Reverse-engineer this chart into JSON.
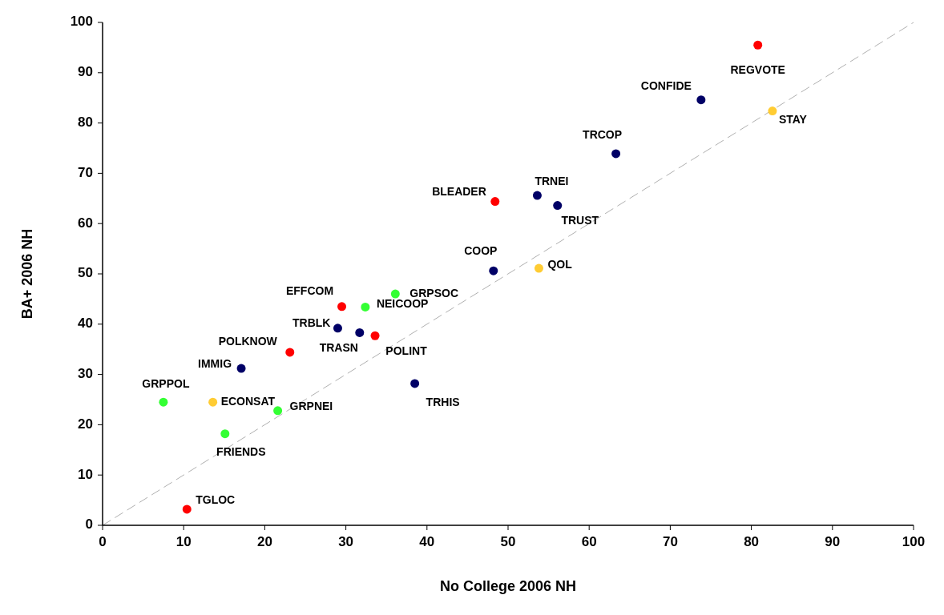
{
  "chart_data": {
    "type": "scatter",
    "xlabel": "No College 2006 NH",
    "ylabel": "BA+ 2006 NH",
    "xlim": [
      0,
      100
    ],
    "ylim": [
      0,
      100
    ],
    "xticks": [
      0,
      10,
      20,
      30,
      40,
      50,
      60,
      70,
      80,
      90,
      100
    ],
    "yticks": [
      0,
      10,
      20,
      30,
      40,
      50,
      60,
      70,
      80,
      90,
      100
    ],
    "grid": false,
    "marker": "circle",
    "series": [
      {
        "type": "line",
        "color": "#b0b0b0",
        "line_style": "dashed",
        "marker": "none",
        "x": [
          0,
          100
        ],
        "values": [
          0,
          100
        ]
      },
      {
        "x": [
          80.8,
          73.8,
          82.6,
          63.3,
          53.6,
          56.1,
          48.4,
          48.2,
          53.8,
          36.1,
          29.5,
          32.4,
          29.0,
          31.7,
          33.6,
          23.1,
          17.1,
          38.5,
          7.5,
          13.6,
          21.6,
          15.1,
          10.4
        ],
        "values": [
          95.5,
          84.6,
          82.4,
          73.9,
          65.6,
          63.6,
          64.4,
          50.6,
          51.1,
          46.0,
          43.5,
          43.4,
          39.2,
          38.3,
          37.7,
          34.4,
          31.2,
          28.2,
          24.5,
          24.5,
          22.8,
          18.2,
          3.2
        ],
        "colors": [
          "#ff0000",
          "#000066",
          "#ffcc33",
          "#000066",
          "#000066",
          "#000066",
          "#ff0000",
          "#000066",
          "#ffcc33",
          "#33ff33",
          "#ff0000",
          "#33ff33",
          "#000066",
          "#000066",
          "#ff0000",
          "#ff0000",
          "#000066",
          "#000066",
          "#33ff33",
          "#ffcc33",
          "#33ff33",
          "#33ff33",
          "#ff0000"
        ]
      }
    ],
    "annotations": [
      {
        "text": "REGVOTE",
        "x": 80.8,
        "y": 95.5
      },
      {
        "text": "CONFIDE",
        "x": 73.8,
        "y": 84.6
      },
      {
        "text": "STAY",
        "x": 82.6,
        "y": 82.4
      },
      {
        "text": "TRCOP",
        "x": 63.3,
        "y": 73.9
      },
      {
        "text": "TRNEI",
        "x": 53.6,
        "y": 65.6
      },
      {
        "text": "TRUST",
        "x": 56.1,
        "y": 63.6
      },
      {
        "text": "BLEADER",
        "x": 48.4,
        "y": 64.4
      },
      {
        "text": "COOP",
        "x": 48.2,
        "y": 50.6
      },
      {
        "text": "QOL",
        "x": 53.8,
        "y": 51.1
      },
      {
        "text": "GRPSOC",
        "x": 36.1,
        "y": 46.0
      },
      {
        "text": "EFFCOM",
        "x": 29.5,
        "y": 43.5
      },
      {
        "text": "NEICOOP",
        "x": 32.4,
        "y": 43.4
      },
      {
        "text": "TRBLK",
        "x": 29.0,
        "y": 39.2
      },
      {
        "text": "TRASN",
        "x": 31.7,
        "y": 38.3
      },
      {
        "text": "POLINT",
        "x": 33.6,
        "y": 37.7
      },
      {
        "text": "POLKNOW",
        "x": 23.1,
        "y": 34.4
      },
      {
        "text": "IMMIG",
        "x": 17.1,
        "y": 31.2
      },
      {
        "text": "TRHIS",
        "x": 38.5,
        "y": 28.2
      },
      {
        "text": "GRPPOL",
        "x": 7.5,
        "y": 24.5
      },
      {
        "text": "ECONSAT",
        "x": 13.6,
        "y": 24.5
      },
      {
        "text": "GRPNEI",
        "x": 21.6,
        "y": 22.8
      },
      {
        "text": "FRIENDS",
        "x": 15.1,
        "y": 18.2
      },
      {
        "text": "TGLOC",
        "x": 10.4,
        "y": 3.2
      }
    ]
  }
}
